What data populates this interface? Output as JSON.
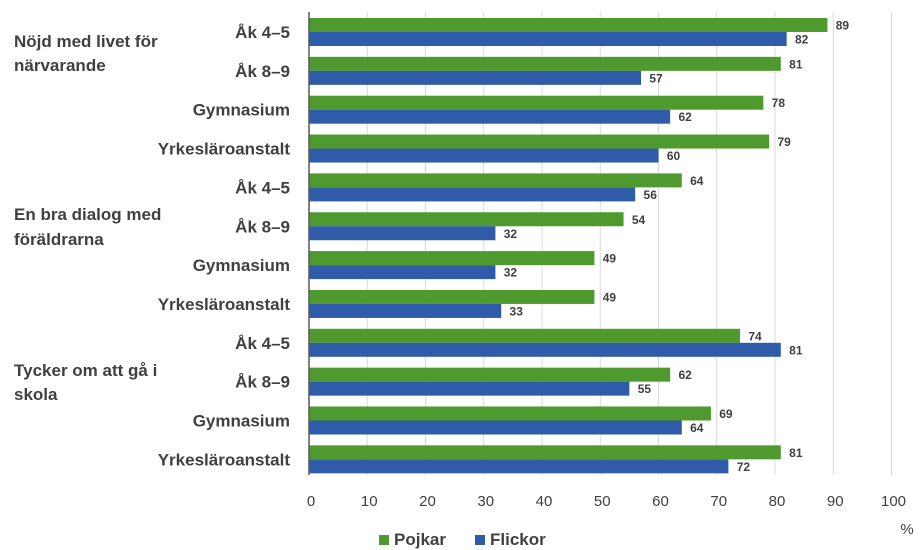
{
  "chart_data": {
    "type": "bar",
    "orientation": "horizontal",
    "groups": [
      {
        "label": [
          "Nöjd med livet för",
          "närvarande"
        ],
        "categories": [
          "Åk 4–5",
          "Åk 8–9",
          "Gymnasium",
          "Yrkesläroanstalt"
        ]
      },
      {
        "label": [
          "En bra dialog med",
          "föräldrarna"
        ],
        "categories": [
          "Åk 4–5",
          "Åk 8–9",
          "Gymnasium",
          "Yrkesläroanstalt"
        ]
      },
      {
        "label": [
          "Tycker om att gå i",
          "skola"
        ],
        "categories": [
          "Åk 4–5",
          "Åk 8–9",
          "Gymnasium",
          "Yrkesläroanstalt"
        ]
      }
    ],
    "series": [
      {
        "name": "Pojkar",
        "color": "#4e9a2e",
        "values": [
          89,
          81,
          78,
          79,
          64,
          54,
          49,
          49,
          74,
          62,
          69,
          81
        ]
      },
      {
        "name": "Flickor",
        "color": "#2f5ba8",
        "values": [
          82,
          57,
          62,
          60,
          56,
          32,
          32,
          33,
          81,
          55,
          64,
          72
        ]
      }
    ],
    "xlim": [
      0,
      100
    ],
    "xticks": [
      0,
      10,
      20,
      30,
      40,
      50,
      60,
      70,
      80,
      90,
      100
    ],
    "xunit": "%",
    "grid": true,
    "legend": "bottom"
  }
}
